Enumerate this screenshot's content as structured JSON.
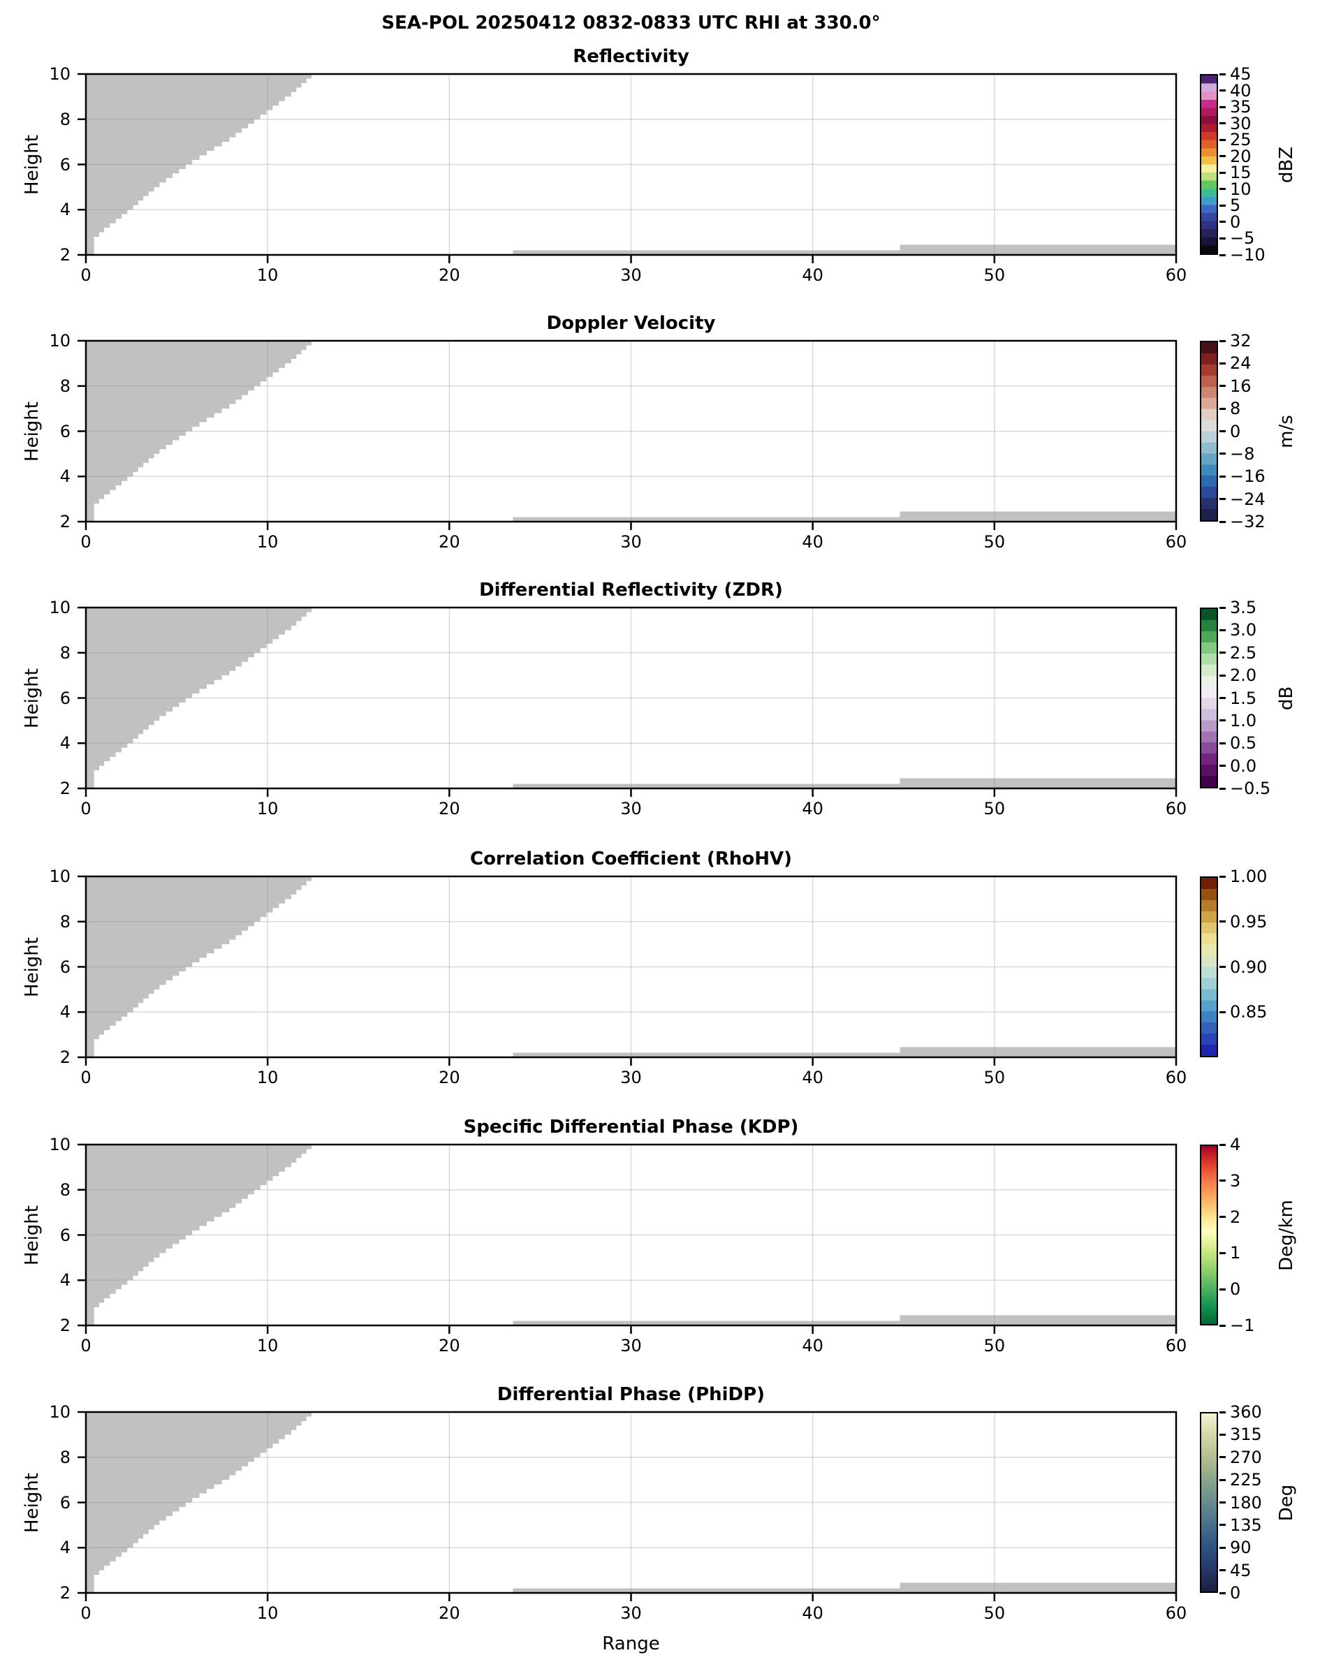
{
  "figure_title": "SEA-POL 20250412 0832-0833 UTC RHI at 330.0°",
  "chart_data": {
    "type": "heatmap",
    "note": "Six stacked RHI radar cross-section panels; all plotted bins are masked gray (no echoes within colormap range). Identical gray mask geometry in every panel.",
    "x_axis": {
      "label": "Range",
      "range": [
        0,
        60
      ],
      "tick_values": [
        0,
        10,
        20,
        30,
        40,
        50,
        60
      ],
      "tick_labels": [
        "0",
        "10",
        "20",
        "30",
        "40",
        "50",
        "60"
      ]
    },
    "y_axis": {
      "label": "Height",
      "range": [
        2,
        10
      ],
      "tick_values": [
        2,
        4,
        6,
        8,
        10
      ],
      "tick_labels": [
        "2",
        "4",
        "6",
        "8",
        "10"
      ]
    },
    "grid": {
      "x_values": [
        10,
        20,
        30,
        40,
        50
      ],
      "y_values": [
        4,
        6,
        8
      ],
      "color": "rgba(140,140,140,0.32)"
    },
    "mask": {
      "color": "#c1c1c1",
      "wedge_boundary_x_by_y": [
        [
          0.45,
          2.0
        ],
        [
          0.45,
          2.6
        ],
        [
          1.0,
          3.0
        ],
        [
          1.8,
          3.5
        ],
        [
          2.6,
          4.0
        ],
        [
          3.3,
          4.5
        ],
        [
          4.05,
          5.0
        ],
        [
          4.95,
          5.5
        ],
        [
          5.85,
          6.0
        ],
        [
          6.85,
          6.5
        ],
        [
          7.9,
          7.0
        ],
        [
          8.75,
          7.5
        ],
        [
          9.6,
          8.0
        ],
        [
          10.45,
          8.5
        ],
        [
          11.3,
          9.0
        ],
        [
          12.0,
          9.5
        ],
        [
          12.7,
          10.0
        ]
      ],
      "strips": [
        {
          "x0": 23.5,
          "x1": 44.8,
          "y0": 2.0,
          "y1": 2.2
        },
        {
          "x0": 44.8,
          "x1": 60.0,
          "y0": 2.0,
          "y1": 2.45
        }
      ]
    },
    "panels": [
      {
        "title": "Reflectivity",
        "colorbar": {
          "unit": "dBZ",
          "min": -10,
          "max": 45,
          "tick_values": [
            45,
            40,
            35,
            30,
            25,
            20,
            15,
            10,
            5,
            0,
            -5,
            -10
          ],
          "tick_labels": [
            "45",
            "40",
            "35",
            "30",
            "25",
            "20",
            "15",
            "10",
            "5",
            "0",
            "−5",
            "−10"
          ],
          "segment_colors_bottom_to_top": [
            "#0a0911",
            "#1a1538",
            "#252159",
            "#2f3184",
            "#35479f",
            "#3b68c4",
            "#3e9ec9",
            "#3dbd94",
            "#62c763",
            "#bfe07e",
            "#f5ef9e",
            "#f2c14a",
            "#ec8f33",
            "#e0602b",
            "#cf3a28",
            "#ad1c2c",
            "#8d0f3d",
            "#b0195e",
            "#c92b8c",
            "#e58fc7",
            "#d3aadc",
            "#4b2472"
          ]
        }
      },
      {
        "title": "Doppler Velocity",
        "colorbar": {
          "unit": "m/s",
          "min": -32,
          "max": 32,
          "tick_values": [
            32,
            24,
            16,
            8,
            0,
            -8,
            -16,
            -24,
            -32
          ],
          "tick_labels": [
            "32",
            "24",
            "16",
            "8",
            "0",
            "−8",
            "−16",
            "−24",
            "−32"
          ],
          "segment_colors_bottom_to_top": [
            "#1d2047",
            "#26316c",
            "#2c4a97",
            "#2f69b0",
            "#4189ba",
            "#67a4c2",
            "#92bccb",
            "#bcd1d7",
            "#dcdcda",
            "#e3cdc3",
            "#d9a995",
            "#cc8570",
            "#bd604d",
            "#a43d30",
            "#7f2023",
            "#471019"
          ]
        }
      },
      {
        "title": "Differential Reflectivity (ZDR)",
        "colorbar": {
          "unit": "dB",
          "min": -0.5,
          "max": 3.5,
          "tick_values": [
            3.5,
            3.0,
            2.5,
            2.0,
            1.5,
            1.0,
            0.5,
            0.0,
            -0.5
          ],
          "tick_labels": [
            "3.5",
            "3.0",
            "2.5",
            "2.0",
            "1.5",
            "1.0",
            "0.5",
            "0.0",
            "−0.5"
          ],
          "segment_colors_bottom_to_top": [
            "#40004b",
            "#5a1166",
            "#72257f",
            "#8a4b9c",
            "#a173b3",
            "#ba9ac8",
            "#d1bddc",
            "#e5d6e8",
            "#f2ebf3",
            "#e9f3e5",
            "#d1ebcb",
            "#afdea9",
            "#83c981",
            "#50a75a",
            "#27823e",
            "#0c5428"
          ]
        }
      },
      {
        "title": "Correlation Coefficient (RhoHV)",
        "colorbar": {
          "unit": "",
          "min": 0.8,
          "max": 1.0,
          "tick_values": [
            1.0,
            0.95,
            0.9,
            0.85
          ],
          "tick_labels": [
            "1.00",
            "0.95",
            "0.90",
            "0.85"
          ],
          "segment_colors_bottom_to_top": [
            "#2127ad",
            "#2a44b4",
            "#3362bb",
            "#3f82c1",
            "#57a0c9",
            "#7cbad0",
            "#9ecfd5",
            "#bedfd4",
            "#d7e7c5",
            "#e7e8ae",
            "#ecdf94",
            "#e0c66e",
            "#cfa447",
            "#b67c28",
            "#955112",
            "#6f2005"
          ]
        }
      },
      {
        "title": "Specific Differential Phase (KDP)",
        "colorbar": {
          "unit": "Deg/km",
          "min": -1,
          "max": 4,
          "tick_values": [
            4,
            3,
            2,
            1,
            0,
            -1
          ],
          "tick_labels": [
            "4",
            "3",
            "2",
            "1",
            "0",
            "−1"
          ],
          "gradient_stops_bottom_to_top": [
            [
              -1,
              "#006837"
            ],
            [
              -0.5,
              "#159352"
            ],
            [
              0,
              "#4fb163"
            ],
            [
              0.5,
              "#8ecf67"
            ],
            [
              1,
              "#c6e67f"
            ],
            [
              1.4,
              "#eef8a8"
            ],
            [
              1.6,
              "#fffdc0"
            ],
            [
              2,
              "#fee38f"
            ],
            [
              2.5,
              "#fdb263"
            ],
            [
              3,
              "#f67b49"
            ],
            [
              3.5,
              "#dd3d2d"
            ],
            [
              4,
              "#a50026"
            ]
          ]
        }
      },
      {
        "title": "Differential Phase (PhiDP)",
        "colorbar": {
          "unit": "Deg",
          "min": 0,
          "max": 360,
          "tick_values": [
            360,
            315,
            270,
            225,
            180,
            135,
            90,
            45,
            0
          ],
          "tick_labels": [
            "360",
            "315",
            "270",
            "225",
            "180",
            "135",
            "90",
            "45",
            "0"
          ],
          "gradient_stops_bottom_to_top": [
            [
              0,
              "#1c1e3e"
            ],
            [
              45,
              "#25386a"
            ],
            [
              90,
              "#2e5481"
            ],
            [
              135,
              "#47708b"
            ],
            [
              180,
              "#678c8e"
            ],
            [
              225,
              "#8aa58b"
            ],
            [
              270,
              "#b2bd8f"
            ],
            [
              315,
              "#d5d6a6"
            ],
            [
              360,
              "#f4f3d5"
            ]
          ]
        }
      }
    ]
  }
}
